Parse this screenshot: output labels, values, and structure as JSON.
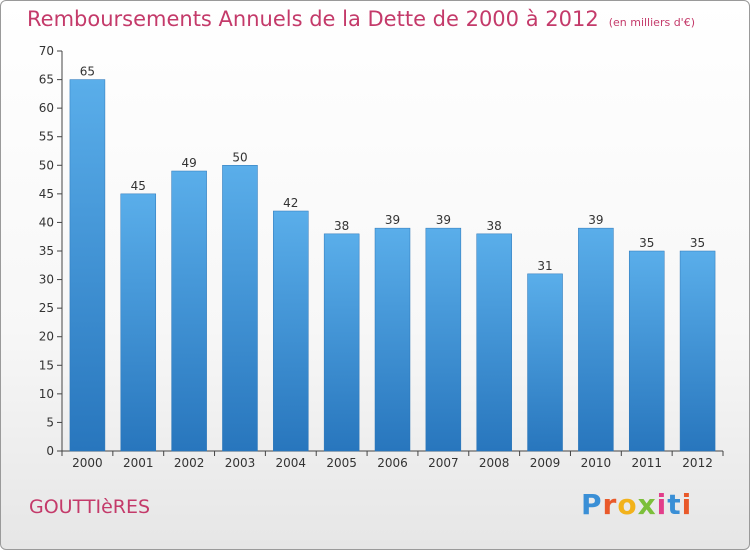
{
  "header": {
    "title": "Remboursements Annuels de la Dette de 2000 à 2012",
    "subtitle": "(en milliers d'€)"
  },
  "footer": {
    "commune": "GOUTTIèRES",
    "logo": [
      "P",
      "r",
      "o",
      "x",
      "i",
      "t",
      "i"
    ]
  },
  "chart_data": {
    "type": "bar",
    "title": "Remboursements Annuels de la Dette de 2000 à 2012",
    "subtitle": "(en milliers d'€)",
    "categories": [
      "2000",
      "2001",
      "2002",
      "2003",
      "2004",
      "2005",
      "2006",
      "2007",
      "2008",
      "2009",
      "2010",
      "2011",
      "2012"
    ],
    "values": [
      65,
      45,
      49,
      50,
      42,
      38,
      39,
      39,
      38,
      31,
      39,
      35,
      35
    ],
    "ylim": [
      0,
      70
    ],
    "yticks": [
      0,
      5,
      10,
      15,
      20,
      25,
      30,
      35,
      40,
      45,
      50,
      55,
      60,
      65,
      70
    ],
    "grid": false,
    "bar_color": "#4a9fe0",
    "bar_color_dark": "#2b7cc4",
    "text_color": "#c43a6a"
  }
}
